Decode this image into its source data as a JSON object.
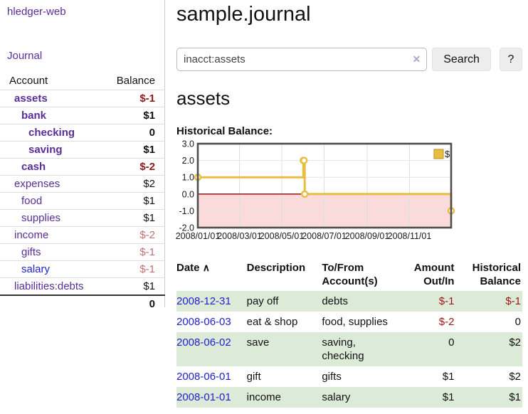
{
  "brand": "hledger-web",
  "nav": {
    "journal": "Journal"
  },
  "sidebar": {
    "headers": {
      "account": "Account",
      "balance": "Balance"
    },
    "accounts": [
      {
        "name": "assets",
        "balance": "$-1"
      },
      {
        "name": "bank",
        "balance": "$1"
      },
      {
        "name": "checking",
        "balance": "0"
      },
      {
        "name": "saving",
        "balance": "$1"
      },
      {
        "name": "cash",
        "balance": "$-2"
      },
      {
        "name": "expenses",
        "balance": "$2"
      },
      {
        "name": "food",
        "balance": "$1"
      },
      {
        "name": "supplies",
        "balance": "$1"
      },
      {
        "name": "income",
        "balance": "$-2"
      },
      {
        "name": "gifts",
        "balance": "$-1"
      },
      {
        "name": "salary",
        "balance": "$-1"
      },
      {
        "name": "liabilities:debts",
        "balance": "$1"
      }
    ],
    "total": "0"
  },
  "header": {
    "title": "sample.journal"
  },
  "search": {
    "value": "inacct:assets",
    "button": "Search",
    "help": "?",
    "clear_icon": "✕"
  },
  "account_page": {
    "heading": "assets",
    "chart_title": "Historical Balance:"
  },
  "chart_data": {
    "type": "line",
    "step": true,
    "title": "Historical Balance",
    "series": [
      {
        "name": "$",
        "color": "#e7bd42",
        "points": [
          [
            "2008-01-01",
            1
          ],
          [
            "2008-06-01",
            2
          ],
          [
            "2008-06-02",
            2
          ],
          [
            "2008-06-03",
            0
          ],
          [
            "2008-12-31",
            -1
          ]
        ]
      }
    ],
    "x_ticks": [
      "2008/01/01",
      "2008/03/01",
      "2008/05/01",
      "2008/07/01",
      "2008/09/01",
      "2008/11/01"
    ],
    "y_ticks": [
      "3.0",
      "2.0",
      "1.0",
      "0.0",
      "-1.0",
      "-2.0"
    ],
    "ylim": [
      -2,
      3
    ],
    "grid": true,
    "legend": {
      "label": "$",
      "position": "top-right"
    },
    "negative_fill": "#fadada",
    "zero_line_color": "#8b0000"
  },
  "register": {
    "headers": {
      "date": "Date",
      "description": "Description",
      "accounts": "To/From Account(s)",
      "amount": "Amount Out/In",
      "balance": "Historical Balance"
    },
    "sort_icon": "∧",
    "rows": [
      {
        "date": "2008-12-31",
        "description": "pay off",
        "accounts": "debts",
        "amount": "$-1",
        "balance": "$-1"
      },
      {
        "date": "2008-06-03",
        "description": "eat & shop",
        "accounts": "food, supplies",
        "amount": "$-2",
        "balance": "0"
      },
      {
        "date": "2008-06-02",
        "description": "save",
        "accounts": "saving, checking",
        "amount": "0",
        "balance": "$2"
      },
      {
        "date": "2008-06-01",
        "description": "gift",
        "accounts": "gifts",
        "amount": "$1",
        "balance": "$2"
      },
      {
        "date": "2008-01-01",
        "description": "income",
        "accounts": "salary",
        "amount": "$1",
        "balance": "$1"
      }
    ]
  },
  "colors": {
    "link_purple": "#5a2d9a",
    "link_blue": "#2222cc",
    "negative_strong": "#8f1a1a",
    "negative_soft": "#c17272",
    "row_highlight_green": "#dcead8",
    "chart_gold": "#e7bd42",
    "chart_negative_fill": "#fadada",
    "zero_line": "#8b0000"
  }
}
